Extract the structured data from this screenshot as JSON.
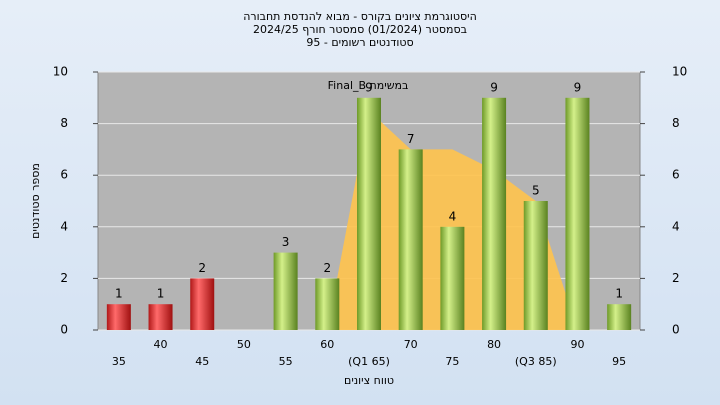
{
  "chart_data": {
    "type": "bar",
    "title": [
      "היסטוגרמת ציונים בקורס - מבוא להנדסת תחבורה",
      "בסמסטר (01/2024) סמסטר חורף 2024/25",
      "סטודנטים רשומים - 95"
    ],
    "annotation": "במשימת Final_B",
    "x_label": "טווח ציונים",
    "y_label": "מספר סטודנטים",
    "categories": [
      "35",
      "40",
      "45",
      "50",
      "55",
      "60",
      "(Q1 65)",
      "70",
      "75",
      "80",
      "(Q3 85)",
      "90",
      "95"
    ],
    "values": [
      1,
      1,
      2,
      0,
      3,
      2,
      9,
      7,
      4,
      9,
      5,
      9,
      1
    ],
    "colors": [
      "red",
      "red",
      "red",
      "green",
      "green",
      "green",
      "green",
      "green",
      "green",
      "green",
      "green",
      "green",
      "green"
    ],
    "area": {
      "color": "#ffc34d",
      "values": [
        null,
        null,
        null,
        null,
        null,
        0,
        8.5,
        7,
        7,
        6.2,
        5,
        0,
        null
      ]
    },
    "ylim": [
      0,
      10
    ],
    "yticks": [
      0,
      2,
      4,
      6,
      8,
      10
    ],
    "y2lim": [
      0,
      10
    ],
    "y2ticks": [
      0,
      2,
      4,
      6,
      8,
      10
    ],
    "grid": true
  }
}
